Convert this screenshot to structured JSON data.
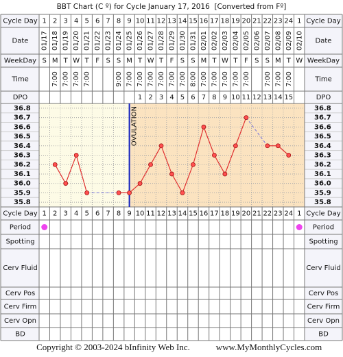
{
  "chart_data": {
    "type": "line",
    "title": "BBT Chart (C º) for Cycle January 17, 2016  [Converted from Fº]",
    "row_labels": {
      "cycle_day": "Cycle Day",
      "date": "Date",
      "weekday": "WeekDay",
      "time": "Time",
      "dpo": "DPO",
      "period": "Period",
      "spotting": "Spotting",
      "cerv_fluid": "Cerv Fluid",
      "cerv_pos": "Cerv Pos",
      "cerv_firm": "Cerv Firm",
      "cerv_opn": "Cerv Opn",
      "bd": "BD"
    },
    "categories": [
      1,
      2,
      3,
      4,
      5,
      6,
      7,
      8,
      9,
      10,
      11,
      12,
      13,
      14,
      15,
      16,
      17,
      18,
      19,
      20,
      21,
      22,
      23,
      24,
      1
    ],
    "dates": [
      "01/17",
      "01/18",
      "01/19",
      "01/20",
      "01/21",
      "01/22",
      "01/23",
      "01/24",
      "01/25",
      "01/26",
      "01/27",
      "01/28",
      "01/29",
      "01/30",
      "01/31",
      "02/01",
      "02/02",
      "02/03",
      "02/04",
      "02/05",
      "02/06",
      "02/07",
      "02/08",
      "02/09",
      "02/10"
    ],
    "weekdays": [
      "S",
      "M",
      "T",
      "W",
      "T",
      "F",
      "S",
      "S",
      "M",
      "T",
      "W",
      "T",
      "F",
      "S",
      "S",
      "M",
      "T",
      "W",
      "T",
      "F",
      "S",
      "S",
      "M",
      "T",
      "W"
    ],
    "times": [
      null,
      "7:00",
      "7:00",
      "7:00",
      "7:00",
      null,
      null,
      "9:00",
      "7:00",
      "7:00",
      "7:00",
      "7:00",
      "7:00",
      "7:00",
      "8:00",
      "7:00",
      "7:00",
      "7:00",
      "7:00",
      "7:00",
      null,
      "7:00",
      "7:00",
      "7:00",
      null
    ],
    "dpo": [
      null,
      null,
      null,
      null,
      null,
      null,
      null,
      null,
      null,
      1,
      2,
      3,
      4,
      5,
      6,
      7,
      8,
      9,
      10,
      11,
      12,
      13,
      14,
      15,
      null
    ],
    "values": [
      null,
      36.2,
      36.0,
      36.3,
      35.9,
      null,
      null,
      35.9,
      35.9,
      36.0,
      36.2,
      36.4,
      36.1,
      35.9,
      36.2,
      36.6,
      36.3,
      36.1,
      36.4,
      36.7,
      null,
      36.4,
      36.4,
      36.3,
      null
    ],
    "color": "#e03030",
    "ylim": [
      35.8,
      36.8
    ],
    "yticks": [
      36.8,
      36.7,
      36.6,
      36.5,
      36.4,
      36.3,
      36.2,
      36.1,
      {
        "value": 36,
        "label": "36.0"
      },
      35.9,
      35.8
    ],
    "grid": true,
    "ovulation_day": 9,
    "ovulation_label": "OVULATION",
    "period": [
      true,
      false,
      false,
      false,
      false,
      false,
      false,
      false,
      false,
      false,
      false,
      false,
      false,
      false,
      false,
      false,
      false,
      false,
      false,
      false,
      false,
      false,
      false,
      false,
      true
    ],
    "copyright": "Copyright © 2003-2024 bInfinity Web Inc.",
    "website": "www.MyMonthlyCycles.com"
  }
}
